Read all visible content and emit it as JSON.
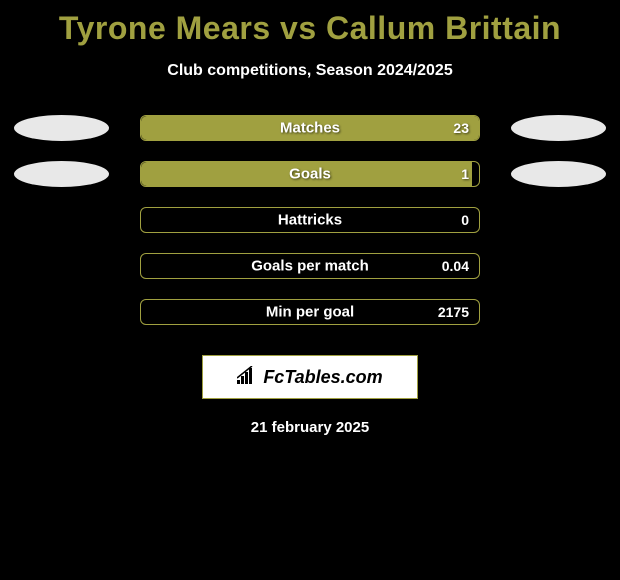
{
  "title": "Tyrone Mears vs Callum Brittain",
  "subtitle": "Club competitions, Season 2024/2025",
  "background_color": "#000000",
  "accent_color": "#a0a040",
  "text_color": "#ffffff",
  "title_color": "#a0a040",
  "title_fontsize": 32,
  "subtitle_fontsize": 16,
  "bar_container_width": 340,
  "bar_container_height": 26,
  "ellipse_color": "#e8e8e8",
  "ellipse_width": 95,
  "ellipse_height": 26,
  "stats": [
    {
      "label": "Matches",
      "value": "23",
      "fill_percent": 100,
      "show_left_ellipse": true,
      "show_right_ellipse": true
    },
    {
      "label": "Goals",
      "value": "1",
      "fill_percent": 98,
      "show_left_ellipse": true,
      "show_right_ellipse": true
    },
    {
      "label": "Hattricks",
      "value": "0",
      "fill_percent": 0,
      "show_left_ellipse": false,
      "show_right_ellipse": false
    },
    {
      "label": "Goals per match",
      "value": "0.04",
      "fill_percent": 0,
      "show_left_ellipse": false,
      "show_right_ellipse": false
    },
    {
      "label": "Min per goal",
      "value": "2175",
      "fill_percent": 0,
      "show_left_ellipse": false,
      "show_right_ellipse": false
    }
  ],
  "logo_text": "FcTables.com",
  "date": "21 february 2025"
}
